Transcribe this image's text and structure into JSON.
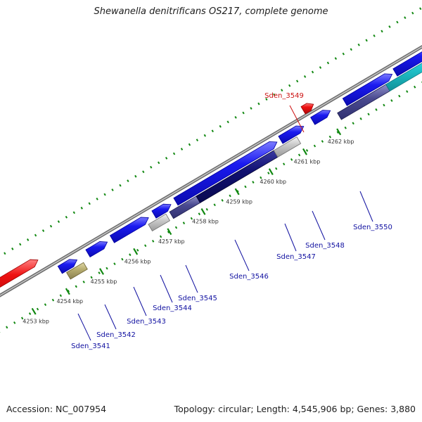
{
  "title": "Shewanella denitrificans OS217, complete genome",
  "footer": {
    "accession": "Accession: NC_007954",
    "summary": "Topology: circular; Length: 4,545,906 bp; Genes: 3,880"
  },
  "ticks": [
    {
      "label": "4253 kbp"
    },
    {
      "label": "4254 kbp"
    },
    {
      "label": "4255 kbp"
    },
    {
      "label": "4256 kbp"
    },
    {
      "label": "4257 kbp"
    },
    {
      "label": "4258 kbp"
    },
    {
      "label": "4259 kbp"
    },
    {
      "label": "4260 kbp"
    },
    {
      "label": "4261 kbp"
    },
    {
      "label": "4262 kbp"
    }
  ],
  "gene_labels": [
    {
      "label": "Sden_3541"
    },
    {
      "label": "Sden_3542"
    },
    {
      "label": "Sden_3543"
    },
    {
      "label": "Sden_3544"
    },
    {
      "label": "Sden_3545"
    },
    {
      "label": "Sden_3546"
    },
    {
      "label": "Sden_3547"
    },
    {
      "label": "Sden_3548"
    },
    {
      "label": "Sden_3549"
    },
    {
      "label": "Sden_3550"
    }
  ],
  "colors": {
    "backbone": "#8a8a8a",
    "tick": "#118811",
    "gene_blue": "#1a1af0",
    "gene_red": "#ee1111",
    "cds_navy": "#101070",
    "cds_slate": "#4a4a90",
    "cds_gray": "#c8c8c8",
    "cds_olive": "#b8ae70",
    "cds_cyan": "#22c8d0",
    "label_blue": "#1010a0",
    "label_red": "#cc1010"
  }
}
